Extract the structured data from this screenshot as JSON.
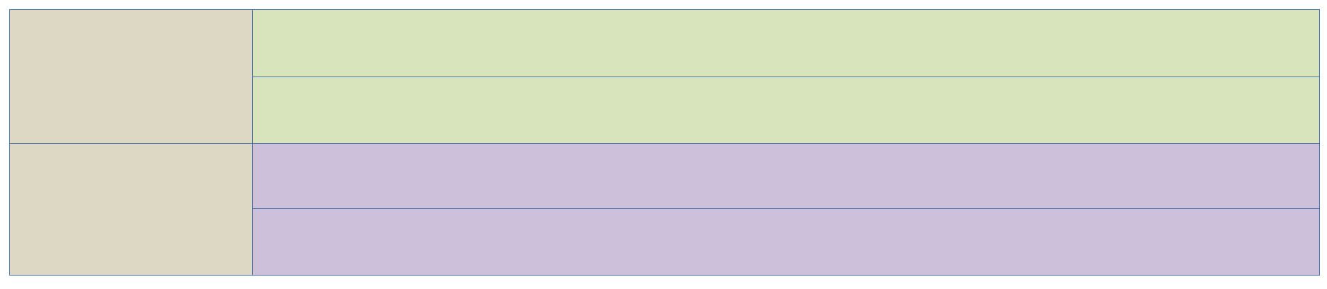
{
  "colors": {
    "border": "#4a72b0",
    "left_fill": "#ddd8c4",
    "top_group_fill": "#d8e4bc",
    "bottom_group_fill": "#ccc0da"
  },
  "table": {
    "left_cells": [
      {
        "text": ""
      },
      {
        "text": ""
      }
    ],
    "right_cells": [
      {
        "text": ""
      },
      {
        "text": ""
      },
      {
        "text": ""
      },
      {
        "text": ""
      }
    ]
  }
}
